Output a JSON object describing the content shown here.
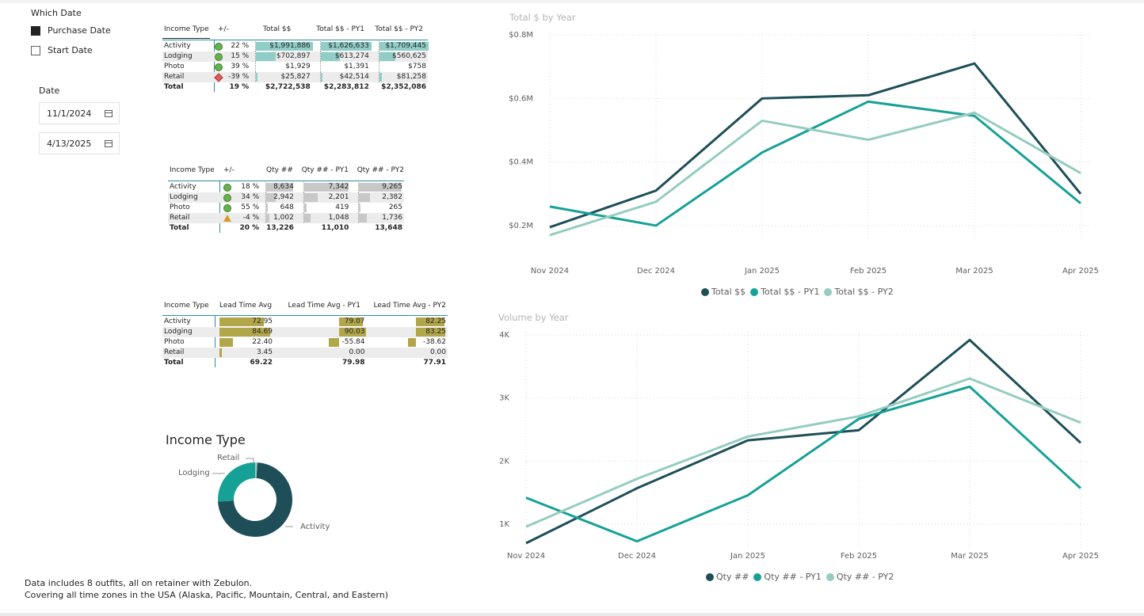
{
  "colors": {
    "accent": "#2b8ea3",
    "series_dark": "#1e4e57",
    "series_teal": "#16a197",
    "series_light": "#96ccc0",
    "kpi_green": "#67b24e",
    "kpi_red": "#e35b58",
    "kpi_amber": "#d69a2d",
    "bar_olive": "#b1a64a"
  },
  "which_date": {
    "title": "Which Date",
    "options": [
      {
        "label": "Purchase Date",
        "checked": true
      },
      {
        "label": "Start Date",
        "checked": false
      }
    ]
  },
  "date_slicer": {
    "title": "Date",
    "start": "11/1/2024",
    "end": "4/13/2025"
  },
  "table_total": {
    "headers": [
      "Income Type",
      "+/-",
      "Total $$",
      "Total $$ - PY1",
      "Total $$ - PY2"
    ],
    "rows": [
      {
        "type": "Activity",
        "kpi": "green",
        "pct": "22 %",
        "v0": "$1,991,886",
        "v1": "$1,626,633",
        "v2": "$1,709,445",
        "f0": 1.0,
        "f1": 1.0,
        "f2": 1.0
      },
      {
        "type": "Lodging",
        "kpi": "green",
        "pct": "15 %",
        "v0": "$702,897",
        "v1": "$613,274",
        "v2": "$560,625",
        "f0": 0.35,
        "f1": 0.38,
        "f2": 0.33
      },
      {
        "type": "Photo",
        "kpi": "green",
        "pct": "39 %",
        "v0": "$1,929",
        "v1": "$1,391",
        "v2": "$758",
        "f0": 0,
        "f1": 0,
        "f2": 0
      },
      {
        "type": "Retail",
        "kpi": "red",
        "pct": "-39 %",
        "v0": "$25,827",
        "v1": "$42,514",
        "v2": "$81,258",
        "f0": 0.01,
        "f1": 0.03,
        "f2": 0.05
      }
    ],
    "total": {
      "type": "Total",
      "pct": "19 %",
      "v0": "$2,722,538",
      "v1": "$2,283,812",
      "v2": "$2,352,086"
    }
  },
  "table_qty": {
    "headers": [
      "Income Type",
      "+/-",
      "Qty ##",
      "Qty ## - PY1",
      "Qty ## - PY2"
    ],
    "rows": [
      {
        "type": "Activity",
        "kpi": "green",
        "pct": "18 %",
        "v0": "8,634",
        "v1": "7,342",
        "v2": "9,265",
        "f0": 1.0,
        "f1": 1.0,
        "f2": 1.0
      },
      {
        "type": "Lodging",
        "kpi": "green",
        "pct": "34 %",
        "v0": "2,942",
        "v1": "2,201",
        "v2": "2,382",
        "f0": 0.34,
        "f1": 0.3,
        "f2": 0.26
      },
      {
        "type": "Photo",
        "kpi": "green",
        "pct": "55 %",
        "v0": "648",
        "v1": "419",
        "v2": "265",
        "f0": 0.07,
        "f1": 0.06,
        "f2": 0.03
      },
      {
        "type": "Retail",
        "kpi": "amber",
        "pct": "-4 %",
        "v0": "1,002",
        "v1": "1,048",
        "v2": "1,736",
        "f0": 0.12,
        "f1": 0.14,
        "f2": 0.19
      }
    ],
    "total": {
      "type": "Total",
      "pct": "20 %",
      "v0": "13,226",
      "v1": "11,010",
      "v2": "13,648"
    }
  },
  "table_lead": {
    "headers": [
      "Income Type",
      "Lead Time Avg",
      "Lead Time Avg - PY1",
      "Lead Time Avg - PY2"
    ],
    "rows": [
      {
        "type": "Activity",
        "v0": "72.95",
        "v1": "79.07",
        "v2": "82.25",
        "n0": 72.95,
        "n1": 79.07,
        "n2": 82.25
      },
      {
        "type": "Lodging",
        "v0": "84.69",
        "v1": "90.03",
        "v2": "83.25",
        "n0": 84.69,
        "n1": 90.03,
        "n2": 83.25
      },
      {
        "type": "Photo",
        "v0": "22.40",
        "v1": "-55.84",
        "v2": "-38.62",
        "n0": 22.4,
        "n1": -55.84,
        "n2": -38.62
      },
      {
        "type": "Retail",
        "v0": "3.45",
        "v1": "0.00",
        "v2": "0.00",
        "n0": 3.45,
        "n1": 0,
        "n2": 0
      }
    ],
    "total": {
      "type": "Total",
      "v0": "69.22",
      "v1": "79.98",
      "v2": "77.91"
    }
  },
  "donut": {
    "title": "Income Type",
    "labels": {
      "retail": "Retail",
      "lodging": "Lodging",
      "activity": "Activity"
    }
  },
  "notes": {
    "line1": "Data includes 8 outfits, all on retainer with Zebulon.",
    "line2": "Covering all time zones in the USA (Alaska, Pacific, Mountain, Central, and Eastern)"
  },
  "chart_data": [
    {
      "type": "line",
      "title": "Total $ by Year",
      "categories": [
        "Nov 2024",
        "Dec 2024",
        "Jan 2025",
        "Feb 2025",
        "Mar 2025",
        "Apr 2025"
      ],
      "y_ticks": [
        "$0.2M",
        "$0.4M",
        "$0.6M",
        "$0.8M"
      ],
      "y_tick_values": [
        0.2,
        0.4,
        0.6,
        0.8
      ],
      "ylim": [
        0.16,
        0.8
      ],
      "series": [
        {
          "name": "Total $$",
          "color": "#1e4e57",
          "values": [
            0.195,
            0.31,
            0.6,
            0.61,
            0.71,
            0.3
          ]
        },
        {
          "name": "Total $$ - PY1",
          "color": "#16a197",
          "values": [
            0.26,
            0.2,
            0.43,
            0.59,
            0.545,
            0.27
          ]
        },
        {
          "name": "Total $$ - PY2",
          "color": "#96ccc0",
          "values": [
            0.17,
            0.275,
            0.53,
            0.47,
            0.555,
            0.365
          ]
        }
      ]
    },
    {
      "type": "line",
      "title": "Volume by Year",
      "categories": [
        "Nov 2024",
        "Dec 2024",
        "Jan 2025",
        "Feb 2025",
        "Mar 2025",
        "Apr 2025"
      ],
      "y_ticks": [
        "1K",
        "2K",
        "3K",
        "4K"
      ],
      "y_tick_values": [
        1000,
        2000,
        3000,
        4000
      ],
      "ylim": [
        600,
        4000
      ],
      "series": [
        {
          "name": "Qty ##",
          "color": "#1e4e57",
          "values": [
            700,
            1570,
            2330,
            2490,
            3920,
            2290
          ]
        },
        {
          "name": "Qty ## - PY1",
          "color": "#16a197",
          "values": [
            1420,
            730,
            1460,
            2670,
            3180,
            1570
          ]
        },
        {
          "name": "Qty ## - PY2",
          "color": "#96ccc0",
          "values": [
            960,
            1720,
            2390,
            2710,
            3310,
            2610
          ]
        }
      ]
    },
    {
      "type": "pie",
      "title": "Income Type",
      "categories": [
        "Activity",
        "Lodging",
        "Retail"
      ],
      "values": [
        1991886,
        702897,
        25827
      ]
    }
  ]
}
